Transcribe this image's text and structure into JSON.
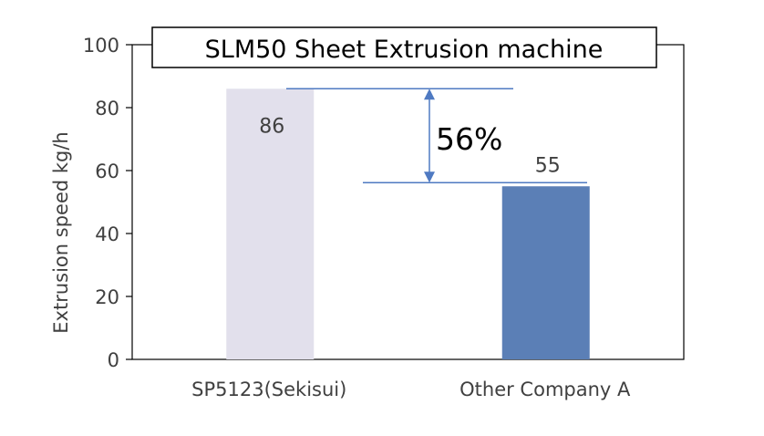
{
  "chart_data": {
    "type": "bar",
    "title": "SLM50 Sheet Extrusion machine",
    "ylabel": "Extrusion speed kg/h",
    "xlabel": "",
    "ylim": [
      0,
      100
    ],
    "yticks": [
      0,
      20,
      40,
      60,
      80,
      100
    ],
    "categories": [
      "SP5123(Sekisui)",
      "Other Company A"
    ],
    "values": [
      86,
      55
    ],
    "bar_colors": [
      "#e2e0ec",
      "#5b7fb6"
    ],
    "data_labels": [
      "86",
      "55"
    ],
    "annotation": {
      "text": "56%",
      "from_value": 86,
      "to_value": 55,
      "color": "#4f7ac2"
    },
    "grid": false,
    "legend": "none"
  }
}
